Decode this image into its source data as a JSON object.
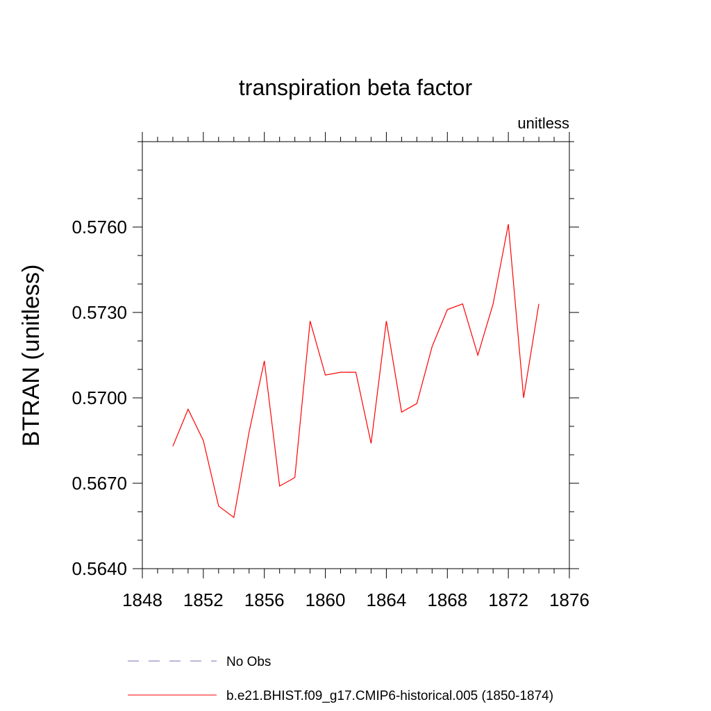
{
  "chart_data": {
    "type": "line",
    "title": "transpiration beta factor",
    "units_label": "unitless",
    "ylabel": "BTRAN  (unitless)",
    "xlabel": "",
    "xlim": [
      1848,
      1876
    ],
    "ylim": [
      0.564,
      0.579
    ],
    "x_ticks": [
      1848,
      1852,
      1856,
      1860,
      1864,
      1868,
      1872,
      1876
    ],
    "x_tick_labels": [
      "1848",
      "1852",
      "1856",
      "1860",
      "1864",
      "1868",
      "1872",
      "1876"
    ],
    "y_ticks": [
      0.564,
      0.567,
      0.57,
      0.573,
      0.576
    ],
    "y_tick_labels": [
      "0.5640",
      "0.5670",
      "0.5700",
      "0.5730",
      "0.5760"
    ],
    "grid": false,
    "legend_position": "bottom",
    "x": [
      1850,
      1851,
      1852,
      1853,
      1854,
      1855,
      1856,
      1857,
      1858,
      1859,
      1860,
      1861,
      1862,
      1863,
      1864,
      1865,
      1866,
      1867,
      1868,
      1869,
      1870,
      1871,
      1872,
      1873,
      1874
    ],
    "series": [
      {
        "name": "b.e21.BHIST.f09_g17.CMIP6-historical.005 (1850-1874)",
        "color": "#ff0000",
        "dash": "solid",
        "values": [
          0.5683,
          0.5696,
          0.5685,
          0.5662,
          0.5658,
          0.5688,
          0.5713,
          0.5669,
          0.5672,
          0.5727,
          0.5708,
          0.5709,
          0.5709,
          0.5684,
          0.5727,
          0.5695,
          0.5698,
          0.5718,
          0.5731,
          0.5733,
          0.5715,
          0.5733,
          0.5761,
          0.57,
          0.5733
        ]
      }
    ],
    "legend": [
      {
        "label": "No Obs",
        "color": "#7b6fb5",
        "dash": "dashed"
      },
      {
        "label": "b.e21.BHIST.f09_g17.CMIP6-historical.005 (1850-1874)",
        "color": "#ff0000",
        "dash": "solid"
      }
    ]
  }
}
